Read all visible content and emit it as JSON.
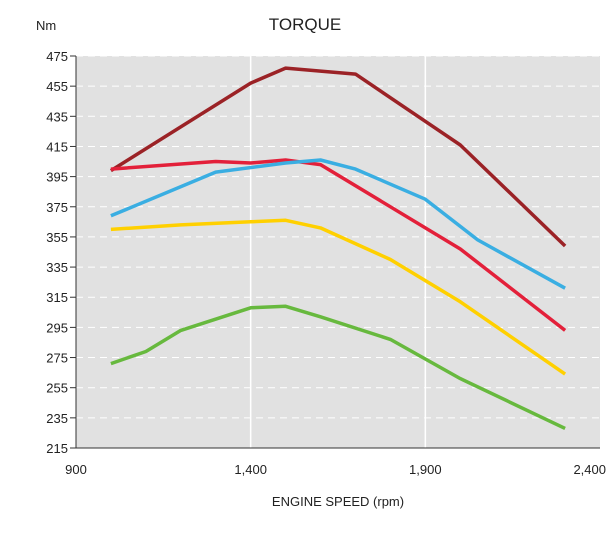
{
  "chart_data": {
    "type": "line",
    "title": "TORQUE",
    "ylabel": "Nm",
    "xlabel": "ENGINE SPEED (rpm)",
    "xlim": [
      900,
      2400
    ],
    "ylim": [
      215,
      475
    ],
    "x_ticks": [
      900,
      1400,
      1900,
      2400
    ],
    "x_tick_labels": [
      "900",
      "1,400",
      "1,900",
      "2,400"
    ],
    "y_ticks": [
      215,
      235,
      255,
      275,
      295,
      315,
      335,
      355,
      375,
      395,
      415,
      435,
      455,
      475
    ],
    "y_tick_labels": [
      "215",
      "235",
      "255",
      "275",
      "295",
      "315",
      "335",
      "355",
      "375",
      "395",
      "415",
      "435",
      "455",
      "475"
    ],
    "grid": true,
    "background_color": "#e1e1e1",
    "series": [
      {
        "color": "#9b2226",
        "x": [
          1000,
          1400,
          1500,
          1700,
          2000,
          2300
        ],
        "y": [
          399,
          457,
          467,
          463,
          416,
          349
        ]
      },
      {
        "color": "#e3203a",
        "x": [
          1000,
          1300,
          1400,
          1500,
          1600,
          2000,
          2300
        ],
        "y": [
          400,
          405,
          404,
          406,
          403,
          347,
          293
        ]
      },
      {
        "color": "#3aaee2",
        "x": [
          1000,
          1300,
          1500,
          1600,
          1700,
          1900,
          2050,
          2300
        ],
        "y": [
          369,
          398,
          404,
          406,
          400,
          380,
          353,
          321
        ]
      },
      {
        "color": "#ffd000",
        "x": [
          1000,
          1200,
          1400,
          1500,
          1600,
          1800,
          2000,
          2300
        ],
        "y": [
          360,
          363,
          365,
          366,
          361,
          340,
          312,
          264
        ]
      },
      {
        "color": "#67b93e",
        "x": [
          1000,
          1100,
          1200,
          1400,
          1500,
          1600,
          1800,
          2000,
          2300
        ],
        "y": [
          271,
          279,
          293,
          308,
          309,
          302,
          287,
          261,
          228
        ]
      }
    ]
  }
}
